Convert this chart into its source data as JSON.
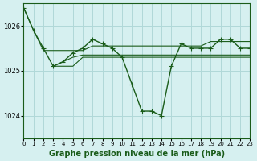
{
  "bg_color": "#d6f0f0",
  "grid_color": "#b0d8d8",
  "line_color": "#1a5c1a",
  "marker_color": "#1a5c1a",
  "xlabel": "Graphe pression niveau de la mer (hPa)",
  "xlabel_fontsize": 7,
  "xlim": [
    0,
    23
  ],
  "ylim": [
    1023.5,
    1026.5
  ],
  "yticks": [
    1024,
    1025,
    1026
  ],
  "xticks": [
    0,
    1,
    2,
    3,
    4,
    5,
    6,
    7,
    8,
    9,
    10,
    11,
    12,
    13,
    14,
    15,
    16,
    17,
    18,
    19,
    20,
    21,
    22,
    23
  ],
  "series": [
    {
      "x": [
        0,
        1,
        2,
        3,
        4,
        5,
        6,
        7,
        8,
        9,
        10,
        11,
        12,
        13,
        14,
        15,
        16,
        17,
        18,
        19,
        20,
        21,
        22,
        23
      ],
      "y": [
        1026.4,
        1025.9,
        1025.5,
        1025.1,
        1025.2,
        1025.4,
        1025.5,
        1025.7,
        1025.6,
        1025.5,
        1025.3,
        1024.7,
        1024.1,
        1024.1,
        1024.0,
        1025.1,
        1025.6,
        1025.5,
        1025.5,
        1025.5,
        1025.7,
        1025.7,
        1025.5,
        1025.5
      ],
      "with_markers": true
    },
    {
      "x": [
        0,
        1,
        2,
        3,
        4,
        5,
        6,
        7,
        8,
        9,
        10,
        11,
        12,
        13,
        14,
        15,
        16,
        17,
        18,
        19,
        20,
        21,
        22,
        23
      ],
      "y": [
        1026.4,
        1025.9,
        1025.45,
        1025.45,
        1025.45,
        1025.45,
        1025.45,
        1025.55,
        1025.55,
        1025.55,
        1025.55,
        1025.55,
        1025.55,
        1025.55,
        1025.55,
        1025.55,
        1025.55,
        1025.55,
        1025.55,
        1025.65,
        1025.65,
        1025.65,
        1025.65,
        1025.65
      ],
      "with_markers": false
    },
    {
      "x": [
        3,
        4,
        5,
        6,
        7,
        8,
        9,
        10,
        11,
        12,
        13,
        14,
        15,
        16,
        17,
        18,
        19,
        20,
        21,
        22,
        23
      ],
      "y": [
        1025.1,
        1025.2,
        1025.3,
        1025.35,
        1025.35,
        1025.35,
        1025.35,
        1025.35,
        1025.35,
        1025.35,
        1025.35,
        1025.35,
        1025.35,
        1025.35,
        1025.35,
        1025.35,
        1025.35,
        1025.35,
        1025.35,
        1025.35,
        1025.35
      ],
      "with_markers": false
    },
    {
      "x": [
        3,
        4,
        5,
        6,
        7,
        8,
        9,
        10,
        11,
        12,
        13,
        14,
        15,
        16,
        17,
        18,
        19,
        20,
        21,
        22,
        23
      ],
      "y": [
        1025.1,
        1025.1,
        1025.1,
        1025.3,
        1025.3,
        1025.3,
        1025.3,
        1025.3,
        1025.3,
        1025.3,
        1025.3,
        1025.3,
        1025.3,
        1025.3,
        1025.3,
        1025.3,
        1025.3,
        1025.3,
        1025.3,
        1025.3,
        1025.3
      ],
      "with_markers": false
    }
  ]
}
